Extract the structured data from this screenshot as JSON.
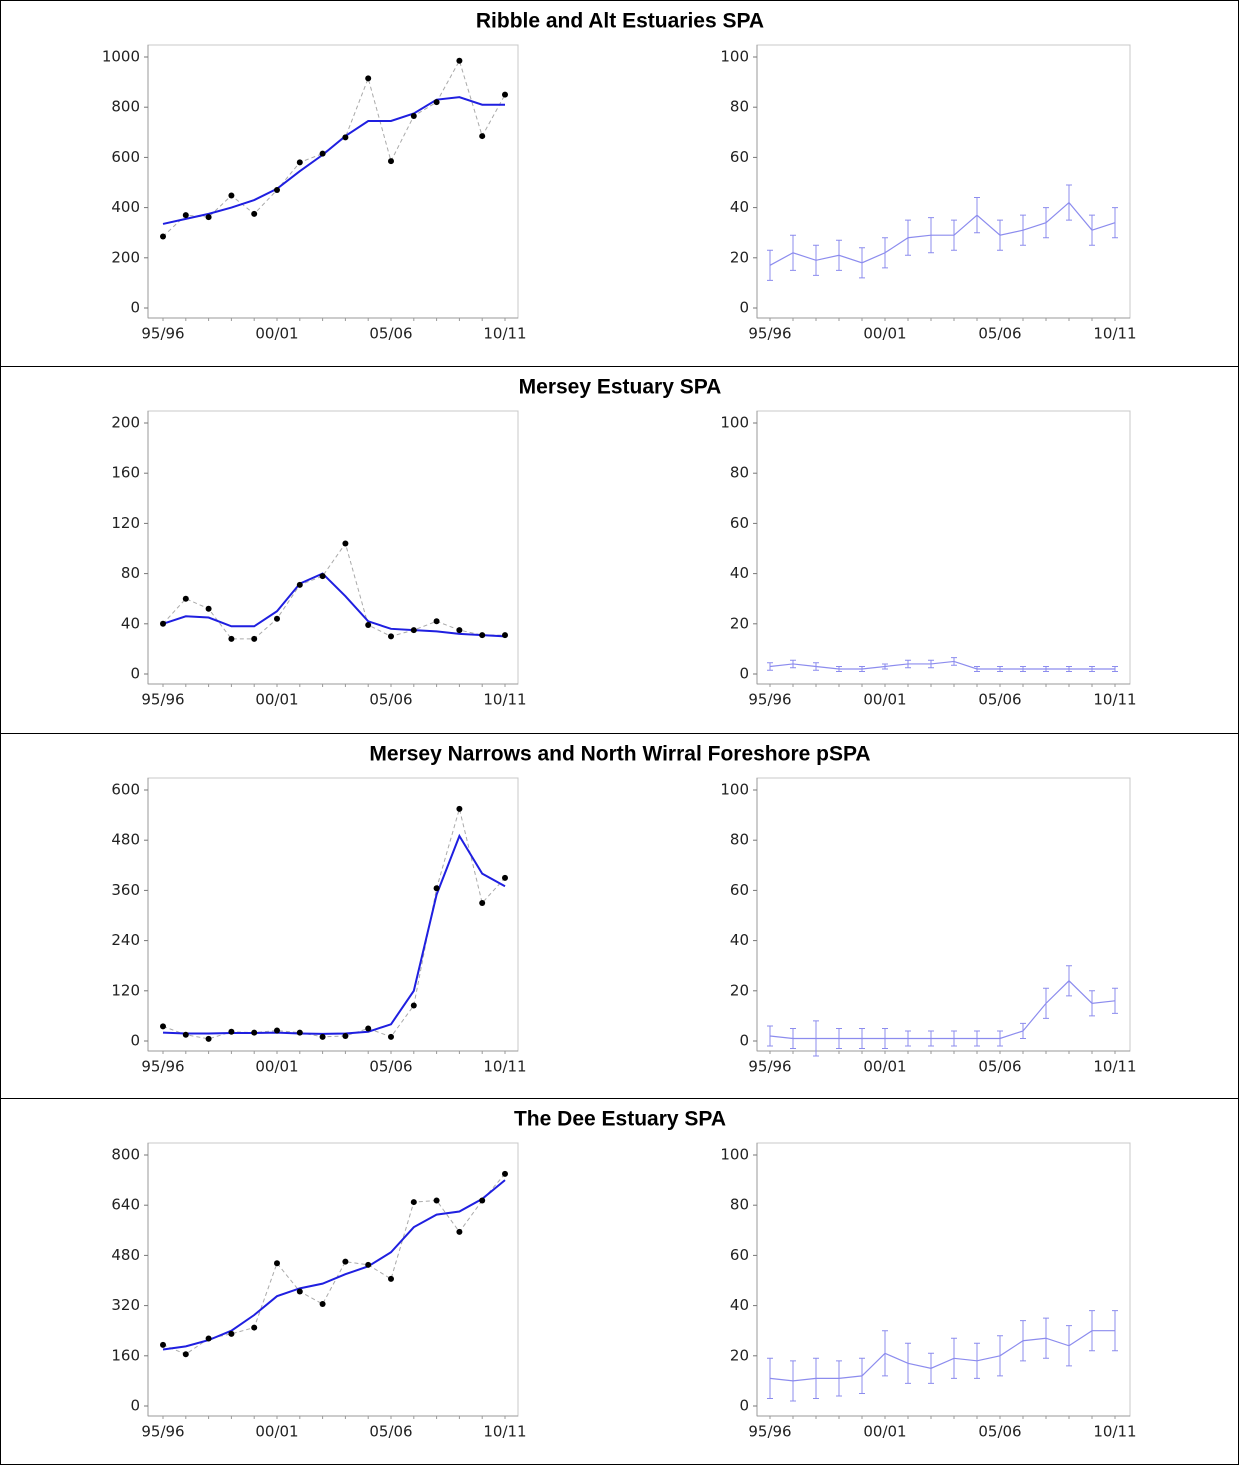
{
  "chart_data": [
    {
      "type": "scatter",
      "title": "Ribble and Alt Estuaries SPA",
      "categories": [
        "95/96",
        null,
        null,
        null,
        null,
        "00/01",
        null,
        null,
        null,
        null,
        "05/06",
        null,
        null,
        null,
        null,
        "10/11"
      ],
      "series": [
        {
          "color": "#000000",
          "values": [
            285,
            370,
            362,
            448,
            375,
            470,
            580,
            615,
            680,
            915,
            585,
            765,
            820,
            985,
            685,
            850
          ]
        },
        {
          "color": "#1f1fe0",
          "values": [
            335,
            355,
            375,
            400,
            430,
            475,
            545,
            610,
            685,
            745,
            745,
            775,
            830,
            840,
            810,
            810
          ]
        }
      ],
      "ylim": [
        0,
        1000
      ],
      "yticks": [
        0,
        200,
        400,
        600,
        800,
        1000
      ]
    },
    {
      "type": "line",
      "categories": [
        "95/96",
        null,
        null,
        null,
        null,
        "00/01",
        null,
        null,
        null,
        null,
        "05/06",
        null,
        null,
        null,
        null,
        "10/11"
      ],
      "series": [
        {
          "color": "#8c8cee",
          "values": [
            17,
            22,
            19,
            21,
            18,
            22,
            28,
            29,
            29,
            37,
            29,
            31,
            34,
            42,
            31,
            34
          ],
          "errors": [
            6,
            7,
            6,
            6,
            6,
            6,
            7,
            7,
            6,
            7,
            6,
            6,
            6,
            7,
            6,
            6
          ]
        }
      ],
      "ylim": [
        0,
        100
      ],
      "yticks": [
        0,
        20,
        40,
        60,
        80,
        100
      ]
    },
    {
      "type": "scatter",
      "title": "Mersey Estuary SPA",
      "categories": [
        "95/96",
        null,
        null,
        null,
        null,
        "00/01",
        null,
        null,
        null,
        null,
        "05/06",
        null,
        null,
        null,
        null,
        "10/11"
      ],
      "series": [
        {
          "color": "#000000",
          "values": [
            40,
            60,
            52,
            28,
            28,
            44,
            71,
            78,
            104,
            39,
            30,
            35,
            42,
            35,
            31,
            31
          ]
        },
        {
          "color": "#1f1fe0",
          "values": [
            40,
            46,
            45,
            38,
            38,
            50,
            72,
            80,
            62,
            42,
            36,
            35,
            34,
            32,
            31,
            30
          ]
        }
      ],
      "ylim": [
        0,
        200
      ],
      "yticks": [
        0,
        40,
        80,
        120,
        160,
        200
      ]
    },
    {
      "type": "line",
      "categories": [
        "95/96",
        null,
        null,
        null,
        null,
        "00/01",
        null,
        null,
        null,
        null,
        "05/06",
        null,
        null,
        null,
        null,
        "10/11"
      ],
      "series": [
        {
          "color": "#8c8cee",
          "values": [
            3,
            4,
            3,
            2,
            2,
            3,
            4,
            4,
            5,
            2,
            2,
            2,
            2,
            2,
            2,
            2
          ],
          "errors": [
            1.5,
            1.5,
            1.5,
            1,
            1,
            1,
            1.5,
            1.5,
            1.5,
            1,
            1,
            1,
            1,
            1,
            1,
            1
          ]
        }
      ],
      "ylim": [
        0,
        100
      ],
      "yticks": [
        0,
        20,
        40,
        60,
        80,
        100
      ]
    },
    {
      "type": "scatter",
      "title": "Mersey Narrows and North Wirral Foreshore pSPA",
      "categories": [
        "95/96",
        null,
        null,
        null,
        null,
        "00/01",
        null,
        null,
        null,
        null,
        "05/06",
        null,
        null,
        null,
        null,
        "10/11"
      ],
      "series": [
        {
          "color": "#000000",
          "values": [
            35,
            15,
            5,
            22,
            20,
            25,
            20,
            10,
            12,
            30,
            10,
            85,
            365,
            555,
            330,
            390
          ]
        },
        {
          "color": "#1f1fe0",
          "values": [
            20,
            18,
            18,
            19,
            19,
            20,
            18,
            17,
            18,
            22,
            40,
            120,
            350,
            490,
            400,
            370
          ]
        }
      ],
      "ylim": [
        0,
        600
      ],
      "yticks": [
        0,
        120,
        240,
        360,
        480,
        600
      ]
    },
    {
      "type": "line",
      "categories": [
        "95/96",
        null,
        null,
        null,
        null,
        "00/01",
        null,
        null,
        null,
        null,
        "05/06",
        null,
        null,
        null,
        null,
        "10/11"
      ],
      "series": [
        {
          "color": "#8c8cee",
          "values": [
            2,
            1,
            1,
            1,
            1,
            1,
            1,
            1,
            1,
            1,
            1,
            4,
            15,
            24,
            15,
            16
          ],
          "errors": [
            4,
            4,
            7,
            4,
            4,
            4,
            3,
            3,
            3,
            3,
            3,
            3,
            6,
            6,
            5,
            5
          ]
        }
      ],
      "ylim": [
        0,
        100
      ],
      "yticks": [
        0,
        20,
        40,
        60,
        80,
        100
      ]
    },
    {
      "type": "scatter",
      "title": "The Dee Estuary SPA",
      "categories": [
        "95/96",
        null,
        null,
        null,
        null,
        "00/01",
        null,
        null,
        null,
        null,
        "05/06",
        null,
        null,
        null,
        null,
        "10/11"
      ],
      "series": [
        {
          "color": "#000000",
          "values": [
            195,
            165,
            215,
            230,
            250,
            455,
            365,
            325,
            460,
            450,
            405,
            650,
            655,
            555,
            655,
            740
          ]
        },
        {
          "color": "#1f1fe0",
          "values": [
            180,
            190,
            210,
            240,
            290,
            350,
            375,
            390,
            420,
            445,
            490,
            570,
            610,
            620,
            660,
            720
          ]
        }
      ],
      "ylim": [
        0,
        800
      ],
      "yticks": [
        0,
        160,
        320,
        480,
        640,
        800
      ]
    },
    {
      "type": "line",
      "categories": [
        "95/96",
        null,
        null,
        null,
        null,
        "00/01",
        null,
        null,
        null,
        null,
        "05/06",
        null,
        null,
        null,
        null,
        "10/11"
      ],
      "series": [
        {
          "color": "#8c8cee",
          "values": [
            11,
            10,
            11,
            11,
            12,
            21,
            17,
            15,
            19,
            18,
            20,
            26,
            27,
            24,
            30,
            30
          ],
          "errors": [
            8,
            8,
            8,
            7,
            7,
            9,
            8,
            6,
            8,
            7,
            8,
            8,
            8,
            8,
            8,
            8
          ]
        }
      ],
      "ylim": [
        0,
        100
      ],
      "yticks": [
        0,
        20,
        40,
        60,
        80,
        100
      ]
    }
  ]
}
